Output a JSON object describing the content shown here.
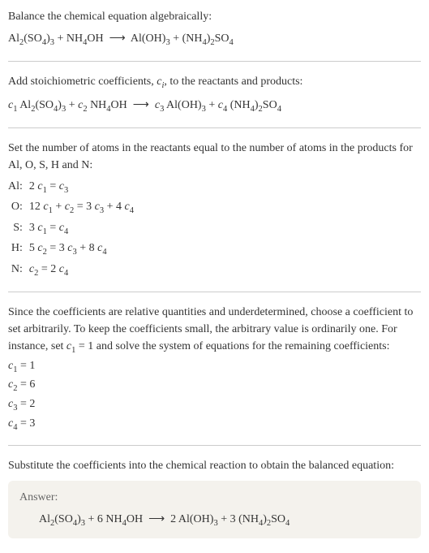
{
  "intro": {
    "line1": "Balance the chemical equation algebraically:",
    "eq_html": "Al<sub>2</sub>(SO<sub>4</sub>)<sub>3</sub> + NH<sub>4</sub>OH &nbsp;⟶&nbsp; Al(OH)<sub>3</sub> + (NH<sub>4</sub>)<sub>2</sub>SO<sub>4</sub>"
  },
  "stoich": {
    "text_html": "Add stoichiometric coefficients, <span class='ital'>c<sub>i</sub></span>, to the reactants and products:",
    "eq_html": "<span class='ital'>c</span><sub>1</sub> Al<sub>2</sub>(SO<sub>4</sub>)<sub>3</sub> + <span class='ital'>c</span><sub>2</sub> NH<sub>4</sub>OH &nbsp;⟶&nbsp; <span class='ital'>c</span><sub>3</sub> Al(OH)<sub>3</sub> + <span class='ital'>c</span><sub>4</sub> (NH<sub>4</sub>)<sub>2</sub>SO<sub>4</sub>"
  },
  "atoms": {
    "intro": "Set the number of atoms in the reactants equal to the number of atoms in the products for Al, O, S, H and N:",
    "rows": [
      {
        "el": "Al:",
        "eq_html": "2 <span class='ital'>c</span><sub>1</sub> = <span class='ital'>c</span><sub>3</sub>"
      },
      {
        "el": "O:",
        "eq_html": "12 <span class='ital'>c</span><sub>1</sub> + <span class='ital'>c</span><sub>2</sub> = 3 <span class='ital'>c</span><sub>3</sub> + 4 <span class='ital'>c</span><sub>4</sub>"
      },
      {
        "el": "S:",
        "eq_html": "3 <span class='ital'>c</span><sub>1</sub> = <span class='ital'>c</span><sub>4</sub>"
      },
      {
        "el": "H:",
        "eq_html": "5 <span class='ital'>c</span><sub>2</sub> = 3 <span class='ital'>c</span><sub>3</sub> + 8 <span class='ital'>c</span><sub>4</sub>"
      },
      {
        "el": "N:",
        "eq_html": "<span class='ital'>c</span><sub>2</sub> = 2 <span class='ital'>c</span><sub>4</sub>"
      }
    ]
  },
  "solve": {
    "text_html": "Since the coefficients are relative quantities and underdetermined, choose a coefficient to set arbitrarily. To keep the coefficients small, the arbitrary value is ordinarily one. For instance, set <span class='ital'>c</span><sub>1</sub> = 1 and solve the system of equations for the remaining coefficients:",
    "coefs": [
      {
        "html": "<span class='ital'>c</span><sub>1</sub> = 1"
      },
      {
        "html": "<span class='ital'>c</span><sub>2</sub> = 6"
      },
      {
        "html": "<span class='ital'>c</span><sub>3</sub> = 2"
      },
      {
        "html": "<span class='ital'>c</span><sub>4</sub> = 3"
      }
    ]
  },
  "final": {
    "text": "Substitute the coefficients into the chemical reaction to obtain the balanced equation:",
    "answer_label": "Answer:",
    "answer_html": "Al<sub>2</sub>(SO<sub>4</sub>)<sub>3</sub> + 6 NH<sub>4</sub>OH &nbsp;⟶&nbsp; 2 Al(OH)<sub>3</sub> + 3 (NH<sub>4</sub>)<sub>2</sub>SO<sub>4</sub>"
  },
  "colors": {
    "text": "#333333",
    "divider": "#cccccc",
    "answer_bg": "#f4f2ed",
    "answer_label": "#666666"
  },
  "typography": {
    "body_fontsize_pt": 11,
    "font_family": "Georgia, serif"
  }
}
